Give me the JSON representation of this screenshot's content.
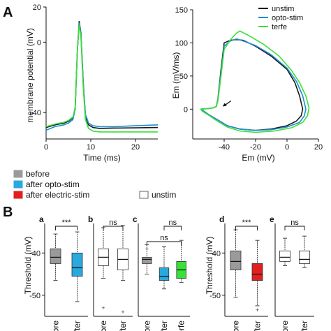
{
  "panel_A": {
    "label": "A",
    "legend": [
      {
        "name": "unstim",
        "color": "#1a1a1a"
      },
      {
        "name": "opto-stim",
        "color": "#1e8fd0"
      },
      {
        "name": "terfe",
        "color": "#39e039"
      }
    ]
  },
  "panel_B": {
    "label": "B",
    "legend": [
      {
        "name": "before",
        "color": "#9a9a9a"
      },
      {
        "name": "after opto-stim",
        "color": "#29a9de"
      },
      {
        "name": "after electric-stim",
        "color": "#e02020"
      },
      {
        "name": "unstim",
        "color": "#ffffff"
      }
    ],
    "y_label": "Threshold (mV)"
  },
  "chart_data": [
    {
      "type": "line",
      "panel": "A-left",
      "xlabel": "Time (ms)",
      "ylabel": "membrane potential (mV)",
      "xlim": [
        0,
        25
      ],
      "ylim": [
        -55,
        20
      ],
      "xticks": [
        "0",
        "10",
        "20"
      ],
      "yticks": [
        "20",
        "0",
        "-40"
      ],
      "series": [
        {
          "name": "unstim",
          "color": "#1a1a1a",
          "x": [
            0,
            2,
            4,
            5,
            6,
            6.5,
            7,
            7.4,
            7.8,
            8.3,
            8.8,
            9.5,
            10.5,
            12,
            15,
            20,
            25
          ],
          "y": [
            -48.5,
            -47,
            -46,
            -45,
            -43,
            -38,
            -5,
            12,
            5,
            -22,
            -42,
            -47,
            -48.5,
            -49,
            -48.8,
            -48.7,
            -48.5
          ]
        },
        {
          "name": "opto-stim",
          "color": "#1e8fd0",
          "x": [
            0,
            2,
            4,
            5,
            6,
            6.5,
            7,
            7.4,
            7.8,
            8.3,
            8.8,
            9.5,
            10.5,
            12,
            15,
            20,
            25
          ],
          "y": [
            -50,
            -48,
            -47,
            -46,
            -44,
            -38,
            -5,
            11,
            4,
            -23,
            -41,
            -46,
            -47.5,
            -48,
            -48,
            -47.5,
            -47
          ]
        },
        {
          "name": "terfe",
          "color": "#39e039",
          "x": [
            0,
            2,
            4,
            5,
            6,
            6.5,
            7,
            7.4,
            7.8,
            8.3,
            8.8,
            9.5,
            10.5,
            12,
            15,
            20,
            25
          ],
          "y": [
            -48,
            -46.5,
            -45.5,
            -44.5,
            -42.5,
            -37,
            -4,
            10,
            3,
            -25,
            -44,
            -49,
            -50.5,
            -51,
            -51,
            -51,
            -51
          ]
        }
      ]
    },
    {
      "type": "line",
      "panel": "A-right",
      "xlabel": "Em (mV)",
      "ylabel": "Em (mV/ms)",
      "xlim": [
        -60,
        20
      ],
      "ylim": [
        -45,
        150
      ],
      "xticks": [
        "-40",
        "-20",
        "0",
        "20"
      ],
      "yticks": [
        "150",
        "100",
        "50",
        "0"
      ],
      "annotation": "arrow at threshold",
      "series": [
        {
          "name": "unstim",
          "color": "#1a1a1a",
          "x": [
            -55,
            -50,
            -47,
            -45,
            -44,
            -42,
            -40,
            -36,
            -32,
            -28,
            -20,
            -10,
            0,
            5,
            8,
            10,
            9,
            6,
            0,
            -10,
            -20,
            -30,
            -38,
            -45,
            -50,
            -53,
            -55
          ],
          "y": [
            0,
            1,
            2,
            4,
            15,
            60,
            100,
            104,
            105,
            104,
            95,
            80,
            60,
            40,
            20,
            0,
            -10,
            -18,
            -25,
            -30,
            -32,
            -30,
            -25,
            -15,
            -8,
            -3,
            0
          ]
        },
        {
          "name": "opto-stim",
          "color": "#1e8fd0",
          "x": [
            -55,
            -50,
            -47,
            -45,
            -44,
            -42,
            -40,
            -36,
            -32,
            -28,
            -20,
            -10,
            0,
            6,
            10,
            12,
            11,
            8,
            0,
            -10,
            -20,
            -30,
            -38,
            -45,
            -50,
            -53,
            -55
          ],
          "y": [
            0,
            1,
            2,
            4,
            14,
            55,
            95,
            103,
            106,
            103,
            96,
            82,
            62,
            42,
            20,
            0,
            -10,
            -20,
            -27,
            -31,
            -32,
            -30,
            -25,
            -15,
            -8,
            -3,
            0
          ]
        },
        {
          "name": "terfe",
          "color": "#39e039",
          "x": [
            -55,
            -50,
            -47,
            -45,
            -44,
            -42,
            -40,
            -36,
            -32,
            -30,
            -25,
            -15,
            -5,
            3,
            8,
            12,
            14,
            13,
            10,
            3,
            -8,
            -20,
            -30,
            -38,
            -45,
            -50,
            -54,
            -55
          ],
          "y": [
            0,
            1,
            2,
            4,
            12,
            50,
            90,
            105,
            115,
            118,
            112,
            98,
            80,
            58,
            40,
            20,
            2,
            -10,
            -20,
            -28,
            -33,
            -35,
            -33,
            -27,
            -17,
            -9,
            -3,
            0
          ]
        }
      ]
    },
    {
      "type": "box",
      "panel": "B-a",
      "sub_label": "a",
      "ylabel": "Threshold (mV)",
      "ylim": [
        -55,
        -33
      ],
      "yticks": [
        "-40",
        "-50"
      ],
      "categories": [
        "before",
        "after"
      ],
      "significance": [
        {
          "pair": [
            0,
            1
          ],
          "label": "***"
        }
      ],
      "boxes": [
        {
          "category": "before",
          "color": "#9a9a9a",
          "whisker_low": -46.5,
          "q1": -42.5,
          "median": -41,
          "q3": -39,
          "whisker_high": -35.5
        },
        {
          "category": "after",
          "color": "#29a9de",
          "whisker_low": -51.5,
          "q1": -45.5,
          "median": -43.5,
          "q3": -40,
          "whisker_high": -35
        }
      ]
    },
    {
      "type": "box",
      "panel": "B-b",
      "sub_label": "b",
      "ylim": [
        -55,
        -33
      ],
      "categories": [
        "before",
        "after"
      ],
      "significance": [
        {
          "pair": [
            0,
            1
          ],
          "label": "ns"
        }
      ],
      "boxes": [
        {
          "category": "before",
          "color": "#ffffff",
          "whisker_low": -46,
          "q1": -43,
          "median": -41,
          "q3": -39,
          "whisker_high": -34,
          "outliers": [
            -53
          ]
        },
        {
          "category": "after",
          "color": "#ffffff",
          "whisker_low": -46.5,
          "q1": -44,
          "median": -41.5,
          "q3": -39,
          "whisker_high": -33.5,
          "outliers": [
            -54
          ]
        }
      ]
    },
    {
      "type": "box",
      "panel": "B-c",
      "sub_label": "c",
      "ylim": [
        -55,
        -33
      ],
      "categories": [
        "before",
        "after",
        "terfe"
      ],
      "significance": [
        {
          "pair": [
            1,
            2
          ],
          "label": "ns"
        },
        {
          "pair": [
            0,
            2
          ],
          "label": "ns"
        }
      ],
      "boxes": [
        {
          "category": "before",
          "color": "#9a9a9a",
          "whisker_low": -45,
          "q1": -42.5,
          "median": -41.5,
          "q3": -41,
          "whisker_high": -38,
          "outliers": [
            -39
          ]
        },
        {
          "category": "after",
          "color": "#29a9de",
          "whisker_low": -48.5,
          "q1": -46.5,
          "median": -45.5,
          "q3": -43.5,
          "whisker_high": -38.5
        },
        {
          "category": "terfe",
          "color": "#39e039",
          "whisker_low": -47,
          "q1": -46,
          "median": -44,
          "q3": -42,
          "whisker_high": -37
        }
      ]
    },
    {
      "type": "box",
      "panel": "B-d",
      "sub_label": "d",
      "ylabel": "Threshold (mV)",
      "ylim": [
        -55,
        -33
      ],
      "yticks": [
        "-40",
        "-50"
      ],
      "categories": [
        "before",
        "after"
      ],
      "significance": [
        {
          "pair": [
            0,
            1
          ],
          "label": "***"
        }
      ],
      "boxes": [
        {
          "category": "before",
          "color": "#9a9a9a",
          "whisker_low": -50.5,
          "q1": -44,
          "median": -42,
          "q3": -39.5,
          "whisker_high": -34.5
        },
        {
          "category": "after",
          "color": "#e02020",
          "whisker_low": -52.5,
          "q1": -46.5,
          "median": -45,
          "q3": -42.5,
          "whisker_high": -37,
          "outliers": [
            -53.5
          ]
        }
      ]
    },
    {
      "type": "box",
      "panel": "B-e",
      "sub_label": "e",
      "ylim": [
        -55,
        -33
      ],
      "categories": [
        "before",
        "after"
      ],
      "significance": [
        {
          "pair": [
            0,
            1
          ],
          "label": "ns"
        }
      ],
      "boxes": [
        {
          "category": "before",
          "color": "#ffffff",
          "whisker_low": -43,
          "q1": -42,
          "median": -41,
          "q3": -39.5,
          "whisker_high": -36.5
        },
        {
          "category": "after",
          "color": "#ffffff",
          "whisker_low": -43.5,
          "q1": -42.5,
          "median": -41.5,
          "q3": -39.5,
          "whisker_high": -36
        }
      ]
    }
  ]
}
